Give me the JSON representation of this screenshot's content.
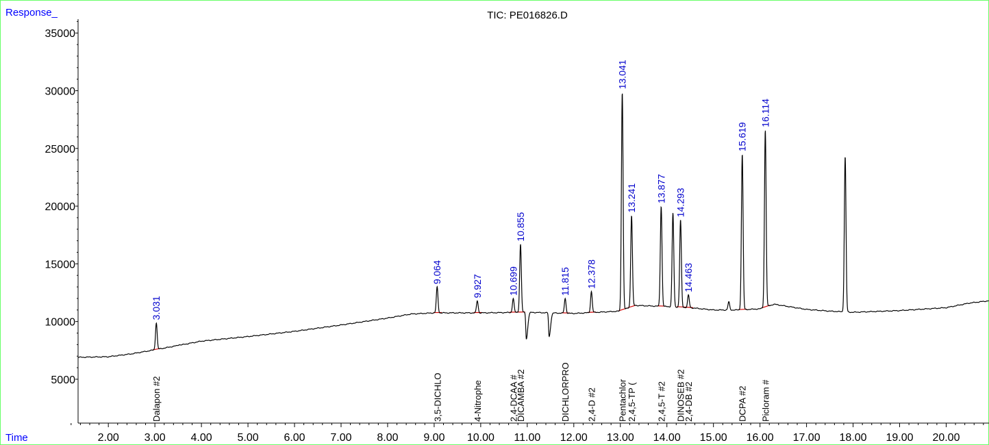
{
  "chart_data": {
    "type": "line",
    "title": "TIC: PE016826.D",
    "ylabel": "Response_",
    "xlabel": "Time",
    "xlim": [
      1.35,
      20.92
    ],
    "ylim": [
      1200,
      36200
    ],
    "x_ticks": [
      "2.00",
      "3.00",
      "4.00",
      "5.00",
      "6.00",
      "7.00",
      "8.00",
      "9.00",
      "10.00",
      "11.00",
      "12.00",
      "13.00",
      "14.00",
      "15.00",
      "16.00",
      "17.00",
      "18.00",
      "19.00",
      "20.00"
    ],
    "y_ticks": [
      "5000",
      "10000",
      "15000",
      "20000",
      "25000",
      "30000",
      "35000"
    ],
    "colors": {
      "trace": "#000000",
      "baseline": "#d00000",
      "label": "#0000cc",
      "axis_label": "#0000ff",
      "frame": "#66ff66"
    },
    "peaks": [
      {
        "rt": 3.031,
        "height": 9900,
        "label": "3.031",
        "compound": "Dalapon #2"
      },
      {
        "rt": 9.064,
        "height": 13000,
        "label": "9.064",
        "compound": "3,5-DICHLO"
      },
      {
        "rt": 9.927,
        "height": 11800,
        "label": "9.927",
        "compound": "4-Nitrophe"
      },
      {
        "rt": 10.699,
        "height": 12000,
        "label": "10.699",
        "compound": "2,4-DCAA #"
      },
      {
        "rt": 10.855,
        "height": 16700,
        "label": "10.855",
        "compound": "DICAMBA #2"
      },
      {
        "rt": 11.815,
        "height": 12000,
        "label": "11.815",
        "compound": "DICHLORPRO"
      },
      {
        "rt": 12.378,
        "height": 12600,
        "label": "12.378",
        "compound": "2,4-D #2"
      },
      {
        "rt": 13.041,
        "height": 29900,
        "label": "13.041",
        "compound": "Pentachlor"
      },
      {
        "rt": 13.241,
        "height": 19200,
        "label": "13.241",
        "compound": "2,4,5-TP ("
      },
      {
        "rt": 13.877,
        "height": 20000,
        "label": "13.877",
        "compound": "2,4,5-T #2"
      },
      {
        "rt": 14.293,
        "height": 18800,
        "label": "14.293",
        "compound": "DINOSEB #2"
      },
      {
        "rt": 14.463,
        "height": 12300,
        "label": "14.463",
        "compound": "2,4-DB #2"
      },
      {
        "rt": 15.619,
        "height": 24500,
        "label": "15.619",
        "compound": "DCPA #2"
      },
      {
        "rt": 16.114,
        "height": 26600,
        "label": "16.114",
        "compound": "Picloram #"
      }
    ],
    "unlabeled_peaks": [
      {
        "rt": 14.13,
        "height": 19400
      },
      {
        "rt": 17.83,
        "height": 24300
      },
      {
        "rt": 15.33,
        "height": 11700
      },
      {
        "rt": 3.52,
        "height": 8000
      }
    ],
    "dips": [
      {
        "rt": 10.98,
        "min": 8500
      },
      {
        "rt": 11.47,
        "min": 8700
      }
    ],
    "baseline_curve": [
      [
        1.35,
        6900
      ],
      [
        2.0,
        6950
      ],
      [
        2.5,
        7200
      ],
      [
        3.0,
        7550
      ],
      [
        4.0,
        8300
      ],
      [
        5.0,
        8700
      ],
      [
        6.0,
        9150
      ],
      [
        7.0,
        9700
      ],
      [
        8.0,
        10300
      ],
      [
        8.5,
        10650
      ],
      [
        9.0,
        10750
      ],
      [
        10.0,
        10750
      ],
      [
        11.0,
        10800
      ],
      [
        12.0,
        10700
      ],
      [
        13.0,
        10900
      ],
      [
        13.3,
        11400
      ],
      [
        14.0,
        11300
      ],
      [
        14.5,
        11200
      ],
      [
        15.0,
        11000
      ],
      [
        15.5,
        11000
      ],
      [
        16.0,
        11100
      ],
      [
        16.3,
        11500
      ],
      [
        17.0,
        11050
      ],
      [
        17.5,
        10900
      ],
      [
        18.0,
        10800
      ],
      [
        19.0,
        10950
      ],
      [
        20.0,
        11200
      ],
      [
        20.5,
        11600
      ],
      [
        20.92,
        11800
      ]
    ]
  }
}
